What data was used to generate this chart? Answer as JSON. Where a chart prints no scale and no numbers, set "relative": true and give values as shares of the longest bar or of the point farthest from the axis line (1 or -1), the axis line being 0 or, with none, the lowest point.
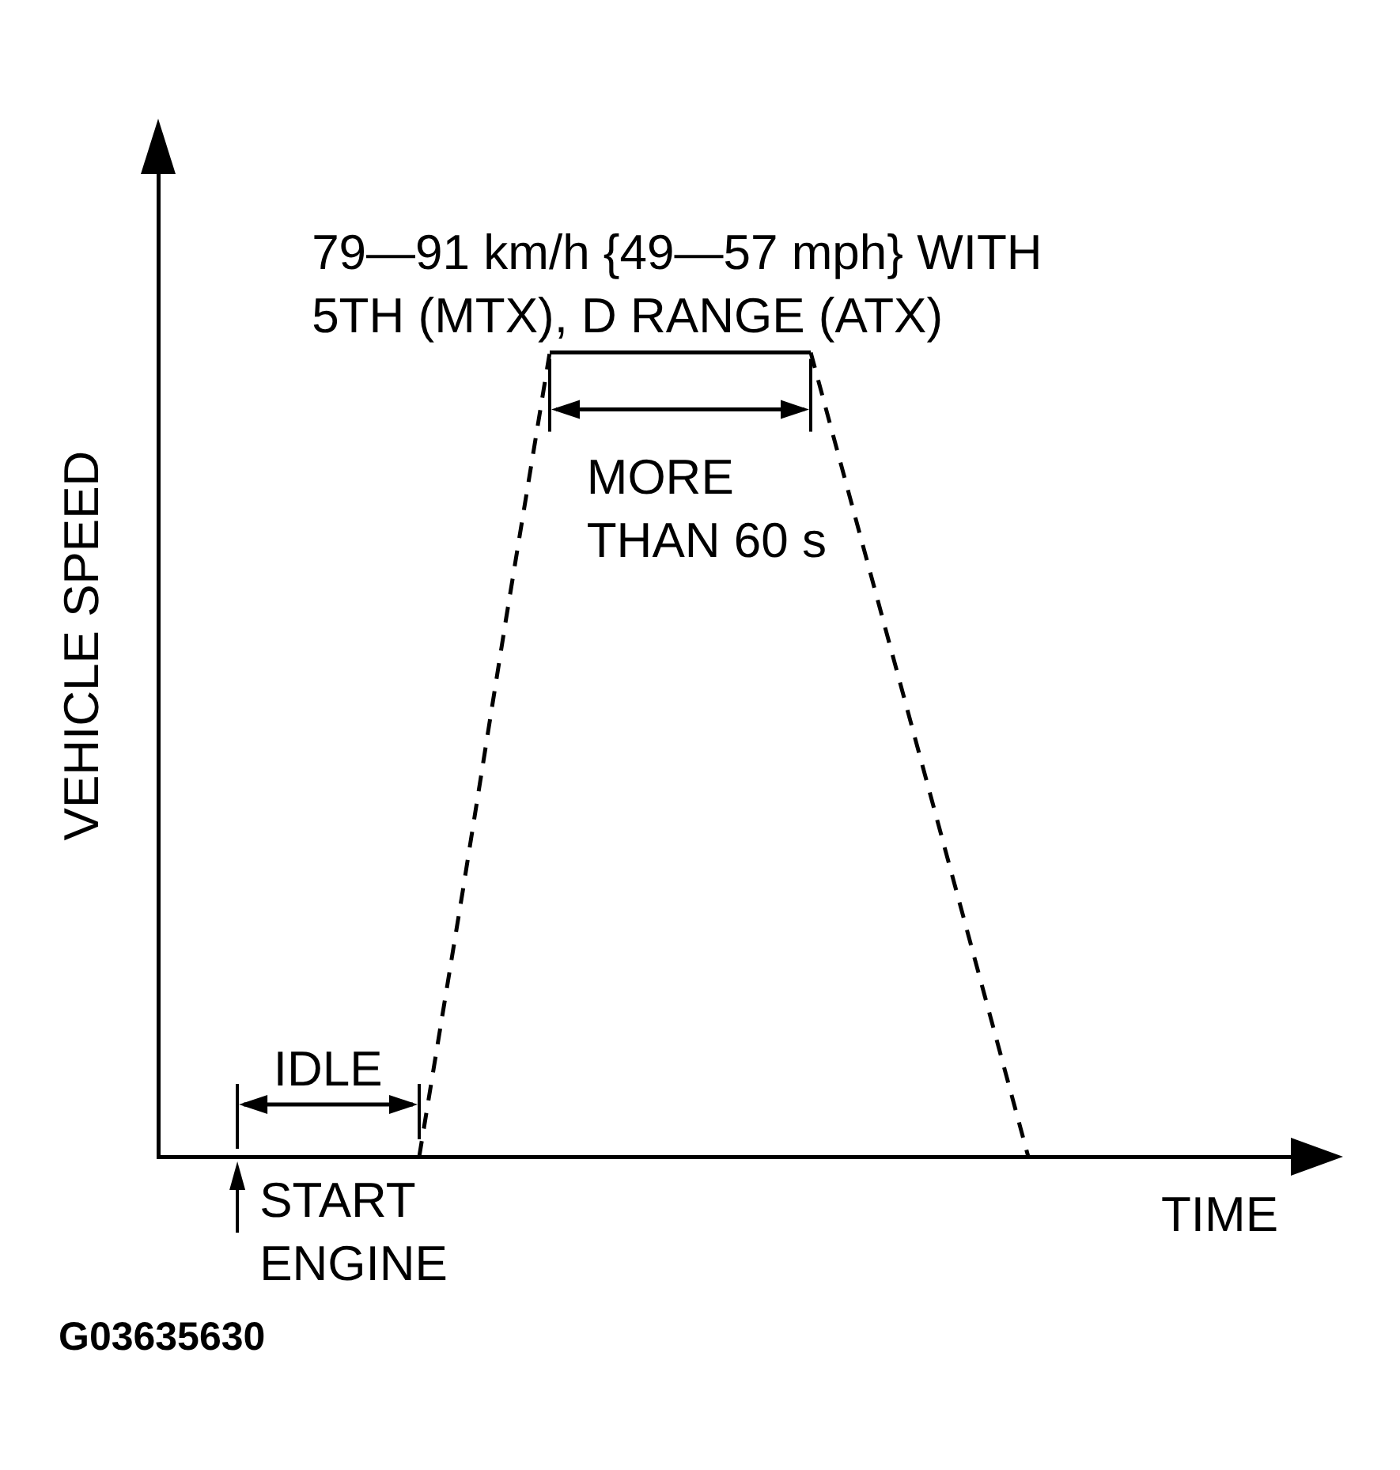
{
  "chart_data": {
    "type": "line",
    "relative": true,
    "xlabel": "TIME",
    "ylabel": "VEHICLE SPEED",
    "tick_labels": false,
    "marker": "none",
    "categories": [
      null,
      null,
      null,
      null,
      null,
      null,
      null,
      null,
      null,
      null,
      null,
      null,
      null,
      null,
      null,
      null,
      null,
      null,
      null,
      null,
      null,
      null,
      null,
      null,
      null,
      null,
      null
    ],
    "series": [
      {
        "color": "#000000",
        "line_style": "dashed",
        "values": [
          null,
          null,
          null,
          null,
          null,
          null,
          0,
          0.33,
          0.67,
          1,
          null,
          null,
          null,
          null,
          null,
          null,
          null,
          null,
          null,
          null,
          null,
          null,
          null,
          null,
          null,
          null,
          null
        ]
      },
      {
        "color": "#000000",
        "line_style": "solid",
        "values": [
          null,
          null,
          null,
          null,
          null,
          null,
          null,
          null,
          null,
          1,
          1,
          1,
          1,
          1,
          1,
          1,
          null,
          null,
          null,
          null,
          null,
          null,
          null,
          null,
          null,
          null,
          null
        ]
      },
      {
        "color": "#000000",
        "line_style": "dashed",
        "values": [
          null,
          null,
          null,
          null,
          null,
          null,
          null,
          null,
          null,
          null,
          null,
          null,
          null,
          null,
          null,
          1,
          0.8,
          0.6,
          0.4,
          0.2,
          0,
          null,
          null,
          null,
          null,
          null,
          null
        ]
      }
    ],
    "annotations": [
      "79—91 km/h {49—57 mph} WITH\n5TH (MTX), D RANGE (ATX)",
      "MORE\nTHAN 60 s",
      "IDLE",
      "START\nENGINE",
      "G03635630"
    ]
  }
}
